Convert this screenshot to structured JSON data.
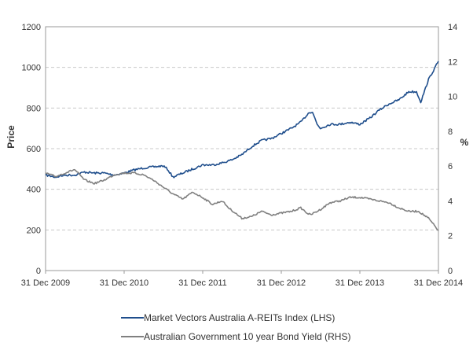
{
  "chart_data": {
    "type": "line",
    "title": "",
    "x_ticks": [
      "31 Dec 2009",
      "31 Dec 2010",
      "31 Dec 2011",
      "31 Dec 2012",
      "31 Dec 2013",
      "31 Dec 2014"
    ],
    "xlim": [
      "2009-12-31",
      "2014-12-31"
    ],
    "y_left": {
      "label": "Price",
      "ylim": [
        0,
        1200
      ],
      "ticks": [
        "0",
        "200",
        "400",
        "600",
        "800",
        "1000",
        "1200"
      ]
    },
    "y_right": {
      "label": "%",
      "ylim": [
        0,
        14
      ],
      "ticks": [
        "0",
        "2",
        "4",
        "6",
        "8",
        "10",
        "12",
        "14"
      ]
    },
    "grid": "horizontal dashed",
    "legend_position": "bottom",
    "series": [
      {
        "name": "Market Vectors Australia A-REITs Index (LHS)",
        "axis": "left",
        "color": "#1f4e8c",
        "x": [
          "2009-12-31",
          "2010-02-15",
          "2010-03-31",
          "2010-05-15",
          "2010-06-30",
          "2010-08-15",
          "2010-09-30",
          "2010-11-15",
          "2010-12-31",
          "2011-02-15",
          "2011-03-31",
          "2011-05-15",
          "2011-06-30",
          "2011-07-20",
          "2011-08-15",
          "2011-09-30",
          "2011-11-15",
          "2011-12-31",
          "2012-02-15",
          "2012-03-31",
          "2012-05-15",
          "2012-06-30",
          "2012-08-15",
          "2012-09-30",
          "2012-11-15",
          "2012-12-31",
          "2013-02-15",
          "2013-03-31",
          "2013-05-10",
          "2013-05-25",
          "2013-06-15",
          "2013-06-30",
          "2013-08-15",
          "2013-09-30",
          "2013-11-15",
          "2013-12-31",
          "2014-02-15",
          "2014-03-31",
          "2014-05-15",
          "2014-06-30",
          "2014-08-15",
          "2014-09-20",
          "2014-10-10",
          "2014-11-15",
          "2014-12-31"
        ],
        "values": [
          470,
          460,
          470,
          470,
          485,
          480,
          480,
          470,
          480,
          495,
          505,
          510,
          515,
          500,
          460,
          480,
          500,
          520,
          520,
          530,
          545,
          570,
          610,
          640,
          650,
          675,
          700,
          730,
          780,
          780,
          720,
          700,
          720,
          720,
          730,
          720,
          750,
          790,
          820,
          840,
          880,
          880,
          830,
          940,
          1030
        ]
      },
      {
        "name": "Australian Government 10 year Bond Yield (RHS)",
        "axis": "right",
        "color": "#808080",
        "x": [
          "2009-12-31",
          "2010-02-15",
          "2010-03-31",
          "2010-05-15",
          "2010-06-30",
          "2010-08-15",
          "2010-09-30",
          "2010-11-15",
          "2010-12-31",
          "2011-02-15",
          "2011-03-31",
          "2011-05-15",
          "2011-06-30",
          "2011-08-15",
          "2011-09-30",
          "2011-11-15",
          "2011-12-31",
          "2012-02-15",
          "2012-03-31",
          "2012-04-30",
          "2012-05-31",
          "2012-06-30",
          "2012-08-15",
          "2012-09-30",
          "2012-11-15",
          "2012-12-31",
          "2013-02-15",
          "2013-03-31",
          "2013-04-30",
          "2013-05-15",
          "2013-06-30",
          "2013-08-15",
          "2013-09-30",
          "2013-11-15",
          "2013-12-31",
          "2014-02-15",
          "2014-03-31",
          "2014-05-15",
          "2014-06-30",
          "2014-08-15",
          "2014-09-30",
          "2014-11-15",
          "2014-12-31"
        ],
        "values": [
          5.6,
          5.4,
          5.6,
          5.8,
          5.2,
          5.0,
          5.2,
          5.5,
          5.6,
          5.6,
          5.5,
          5.2,
          4.8,
          4.4,
          4.1,
          4.5,
          4.2,
          3.8,
          4.0,
          3.6,
          3.3,
          3.0,
          3.1,
          3.4,
          3.2,
          3.3,
          3.4,
          3.6,
          3.3,
          3.2,
          3.5,
          3.9,
          4.0,
          4.2,
          4.2,
          4.1,
          4.0,
          3.9,
          3.6,
          3.4,
          3.4,
          3.0,
          2.3
        ]
      }
    ]
  }
}
